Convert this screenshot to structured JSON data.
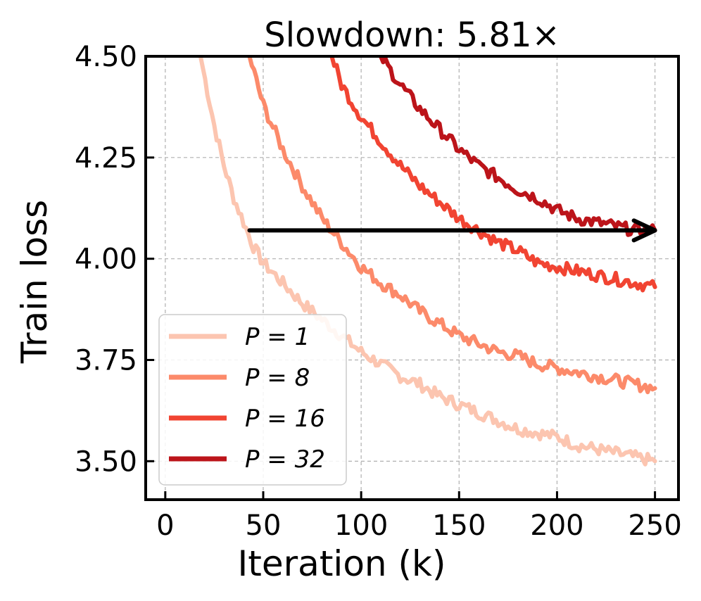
{
  "chart_data": {
    "type": "line",
    "title": "Slowdown: 5.81×",
    "xlabel": "Iteration (k)",
    "ylabel": "Train loss",
    "xlim": [
      -10,
      262
    ],
    "ylim": [
      3.405,
      4.5
    ],
    "xticks": [
      0,
      50,
      100,
      150,
      200,
      250
    ],
    "xtick_labels": [
      "0",
      "50",
      "100",
      "150",
      "200",
      "250"
    ],
    "yticks": [
      3.5,
      3.75,
      4.0,
      4.25,
      4.5
    ],
    "ytick_labels": [
      "3.50",
      "3.75",
      "4.00",
      "4.25",
      "4.50"
    ],
    "grid": true,
    "legend_position": "lower-left",
    "series": [
      {
        "name": "P = 1",
        "legend_label": "P = 1",
        "color": "#fcc5b0",
        "x": [
          18,
          25,
          30,
          35,
          40,
          45,
          50,
          60,
          70,
          80,
          90,
          100,
          110,
          120,
          130,
          140,
          150,
          160,
          170,
          180,
          190,
          200,
          210,
          220,
          230,
          240,
          250
        ],
        "values": [
          4.5,
          4.33,
          4.23,
          4.15,
          4.09,
          4.03,
          3.99,
          3.94,
          3.89,
          3.85,
          3.81,
          3.77,
          3.74,
          3.71,
          3.69,
          3.66,
          3.64,
          3.62,
          3.6,
          3.58,
          3.57,
          3.56,
          3.54,
          3.53,
          3.52,
          3.51,
          3.5
        ]
      },
      {
        "name": "P = 8",
        "legend_label": "P = 8",
        "color": "#fc8a6a",
        "x": [
          43,
          50,
          60,
          70,
          80,
          90,
          100,
          110,
          120,
          130,
          140,
          150,
          160,
          170,
          180,
          190,
          200,
          210,
          220,
          230,
          240,
          250
        ],
        "values": [
          4.5,
          4.38,
          4.27,
          4.18,
          4.1,
          4.04,
          3.98,
          3.94,
          3.91,
          3.87,
          3.84,
          3.81,
          3.79,
          3.77,
          3.76,
          3.74,
          3.73,
          3.72,
          3.71,
          3.7,
          3.69,
          3.68
        ]
      },
      {
        "name": "P = 16",
        "legend_label": "P = 16",
        "color": "#f14432",
        "x": [
          85,
          90,
          100,
          110,
          120,
          130,
          140,
          150,
          160,
          170,
          180,
          190,
          200,
          210,
          220,
          230,
          240,
          250
        ],
        "values": [
          4.5,
          4.43,
          4.35,
          4.29,
          4.23,
          4.18,
          4.14,
          4.1,
          4.07,
          4.04,
          4.02,
          3.99,
          3.98,
          3.97,
          3.96,
          3.95,
          3.94,
          3.93
        ]
      },
      {
        "name": "P = 32",
        "legend_label": "P = 32",
        "color": "#bc141a",
        "x": [
          110,
          120,
          130,
          140,
          150,
          160,
          170,
          180,
          190,
          200,
          210,
          220,
          230,
          240,
          250
        ],
        "values": [
          4.5,
          4.43,
          4.37,
          4.32,
          4.27,
          4.23,
          4.2,
          4.17,
          4.15,
          4.12,
          4.1,
          4.09,
          4.08,
          4.07,
          4.07
        ]
      }
    ],
    "annotations": [
      {
        "type": "arrow",
        "from": [
          43,
          4.07
        ],
        "to": [
          250,
          4.07
        ],
        "color": "#000000"
      }
    ]
  }
}
